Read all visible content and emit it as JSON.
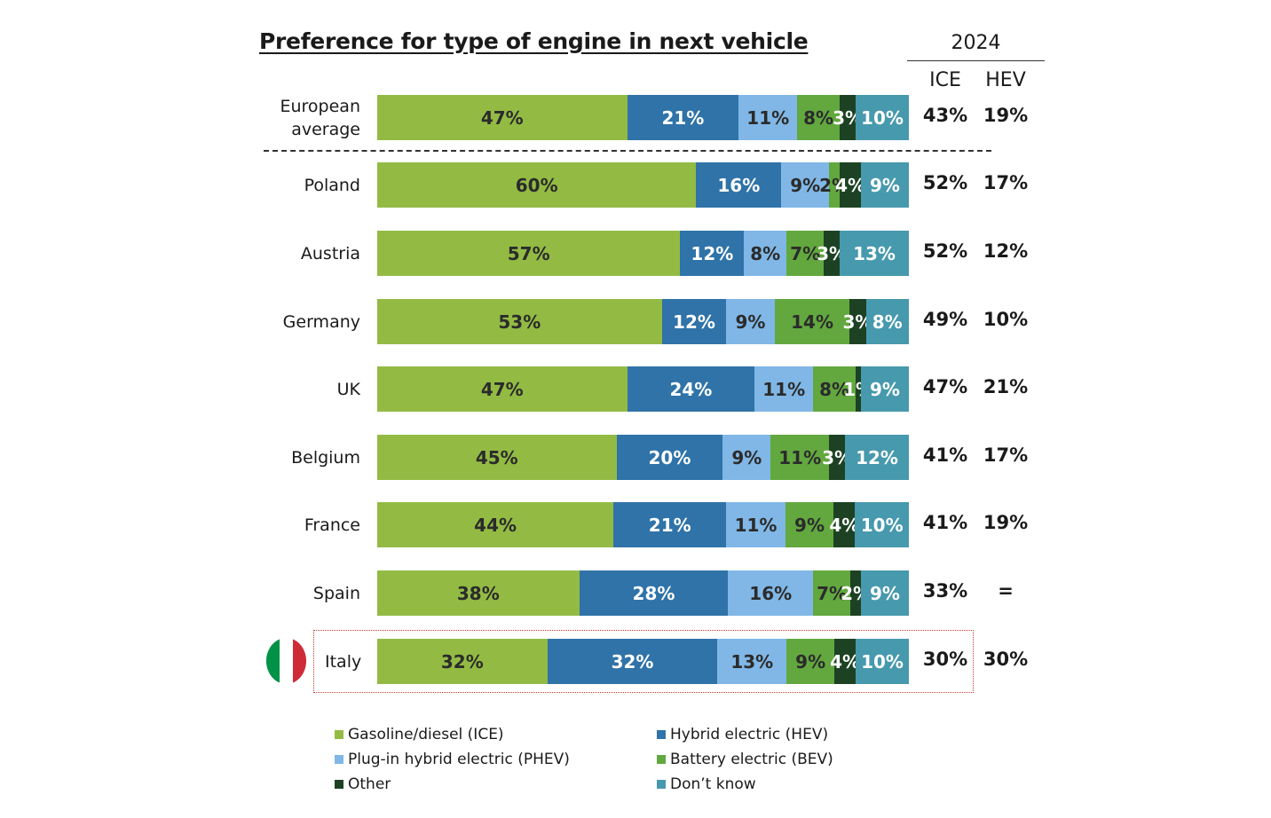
{
  "chart_data": {
    "type": "bar",
    "orientation": "horizontal",
    "stacked": true,
    "title": "Preference for type of engine in next vehicle",
    "categories": [
      "European average",
      "Poland",
      "Austria",
      "Germany",
      "UK",
      "Belgium",
      "France",
      "Spain",
      "Italy"
    ],
    "category_labels": [
      [
        "European",
        "average"
      ],
      [
        "Poland"
      ],
      [
        "Austria"
      ],
      [
        "Germany"
      ],
      [
        "UK"
      ],
      [
        "Belgium"
      ],
      [
        "France"
      ],
      [
        "Spain"
      ],
      [
        "Italy"
      ]
    ],
    "series": [
      {
        "name": "Gasoline/diesel (ICE)",
        "color": "#93bb44",
        "text": "light",
        "values": [
          47,
          60,
          57,
          53,
          47,
          45,
          44,
          38,
          32
        ],
        "labels": [
          "47%",
          "60%",
          "57%",
          "53%",
          "47%",
          "45%",
          "44%",
          "38%",
          "32%"
        ]
      },
      {
        "name": "Hybrid electric (HEV)",
        "color": "#2f73a8",
        "text": "dark",
        "values": [
          21,
          16,
          12,
          12,
          24,
          20,
          21,
          28,
          32
        ],
        "labels": [
          "21%",
          "16%",
          "12%",
          "12%",
          "24%",
          "20%",
          "21%",
          "28%",
          "32%"
        ]
      },
      {
        "name": "Plug-in hybrid electric (PHEV)",
        "color": "#80b7e6",
        "text": "light",
        "values": [
          11,
          9,
          8,
          9,
          11,
          9,
          11,
          16,
          13
        ],
        "labels": [
          "11%",
          "9%",
          "8%",
          "9%",
          "11%",
          "9%",
          "11%",
          "16%",
          "13%"
        ]
      },
      {
        "name": "Battery electric (BEV)",
        "color": "#62a83f",
        "text": "light",
        "values": [
          8,
          2,
          7,
          14,
          8,
          11,
          9,
          7,
          9
        ],
        "labels": [
          "8%",
          "2%",
          "7%",
          "14%",
          "8%",
          "11%",
          "9%",
          "7%",
          "9%"
        ]
      },
      {
        "name": "Other",
        "color": "#1d4223",
        "text": "dark",
        "values": [
          3,
          4,
          3,
          3,
          1,
          3,
          4,
          2,
          4
        ],
        "labels": [
          "3%",
          "4%",
          "3%",
          "3%",
          "1%",
          "3%",
          "4%",
          "2%",
          "4%"
        ]
      },
      {
        "name": "Don't know",
        "color": "#4799ad",
        "text": "dark",
        "values": [
          10,
          9,
          13,
          8,
          9,
          12,
          10,
          9,
          10
        ],
        "labels": [
          "10%",
          "9%",
          "13%",
          "8%",
          "9%",
          "12%",
          "10%",
          "9%",
          "10%"
        ]
      }
    ],
    "comparison": {
      "year": "2024",
      "columns": [
        "ICE",
        "HEV"
      ],
      "ICE": [
        "43%",
        "52%",
        "52%",
        "49%",
        "47%",
        "41%",
        "41%",
        "33%",
        "30%"
      ],
      "HEV": [
        "19%",
        "17%",
        "12%",
        "10%",
        "21%",
        "17%",
        "19%",
        "=",
        "30%"
      ]
    },
    "highlighted_category": "Italy",
    "legend": {
      "placement": "bottom",
      "items": [
        "Gasoline/diesel (ICE)",
        "Hybrid electric (HEV)",
        "Plug-in hybrid electric (PHEV)",
        "Battery electric (BEV)",
        "Other",
        "Don’t know"
      ]
    },
    "xlim": [
      0,
      100
    ],
    "grid": false
  },
  "flag": {
    "icon": "italy-flag-icon",
    "colors": [
      "#009246",
      "#ffffff",
      "#ce2b37"
    ]
  }
}
